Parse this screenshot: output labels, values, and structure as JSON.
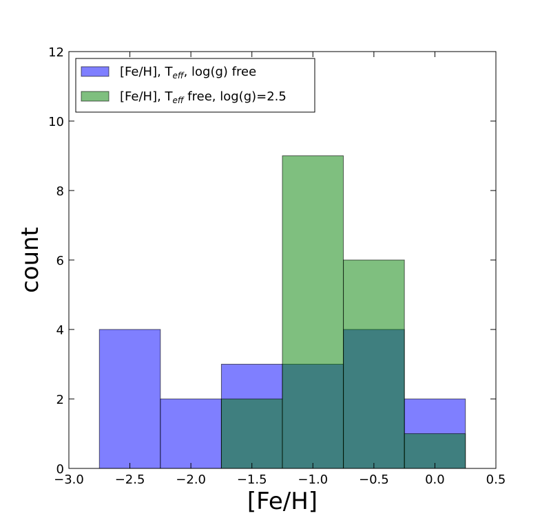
{
  "chart_data": {
    "type": "bar",
    "xlabel": "[Fe/H]",
    "ylabel": "count",
    "xlim": [
      -3.0,
      0.5
    ],
    "ylim": [
      0,
      12
    ],
    "x_ticks": [
      "−3.0",
      "−2.5",
      "−2.0",
      "−1.5",
      "−1.0",
      "−0.5",
      "0.0",
      "0.5"
    ],
    "y_ticks": [
      "0",
      "2",
      "4",
      "6",
      "8",
      "10",
      "12"
    ],
    "bin_edges": [
      -2.75,
      -2.25,
      -1.75,
      -1.25,
      -0.75,
      -0.25,
      0.25
    ],
    "series": [
      {
        "name_prefix": "[Fe/H], T",
        "name_sub": "eff",
        "name_suffix": ", log(g) free",
        "color": "#0000ff",
        "values": [
          4,
          2,
          3,
          3,
          4,
          2
        ]
      },
      {
        "name_prefix": "[Fe/H], T",
        "name_sub": "eff",
        "name_suffix": " free, log(g)=2.5",
        "color": "#008000",
        "values": [
          0,
          0,
          2,
          9,
          6,
          1
        ]
      }
    ],
    "bar_alpha": 0.5,
    "legend_position": "upper-left",
    "grid": false
  }
}
